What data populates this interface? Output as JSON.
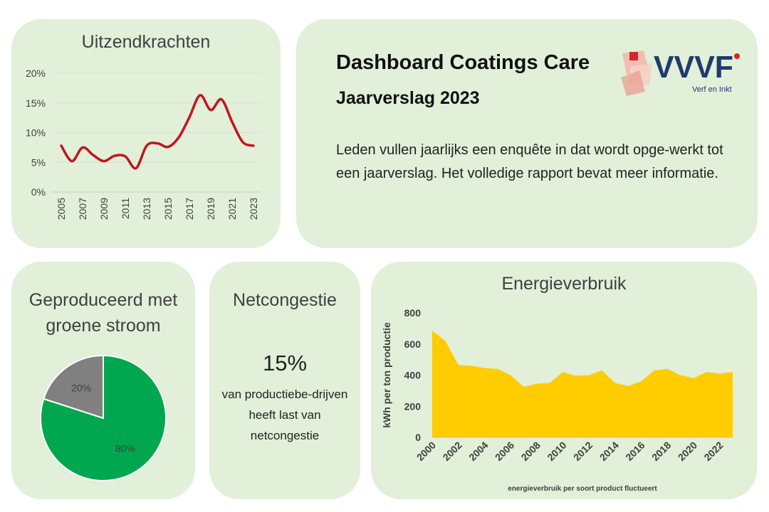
{
  "header": {
    "title": "Dashboard Coatings Care",
    "subtitle": "Jaarverslag 2023",
    "body": "Leden vullen jaarlijks een enquête in dat wordt opge-werkt tot een jaarverslag. Het volledige rapport bevat meer informatie.",
    "logo_text": "VVVF",
    "logo_subtext": "Verf en Inkt",
    "logo_colors": {
      "blue": "#1f3b6e",
      "red": "#d9232e",
      "pink": "#f2b5a9"
    }
  },
  "netcongestie": {
    "title": "Netcongestie",
    "value": "15%",
    "description": "van productiebe-drijven heeft last van netcongestie"
  },
  "chart_data": [
    {
      "type": "line",
      "title": "Uitzendkrachten",
      "x": [
        2005,
        2006,
        2007,
        2008,
        2009,
        2010,
        2011,
        2012,
        2013,
        2014,
        2015,
        2016,
        2017,
        2018,
        2019,
        2020,
        2021,
        2022,
        2023
      ],
      "x_tick_labels": [
        "2005",
        "2007",
        "2009",
        "2011",
        "2013",
        "2015",
        "2017",
        "2019",
        "2021",
        "2023"
      ],
      "series": [
        {
          "values": [
            7.8,
            5.2,
            7.5,
            6.2,
            5.2,
            6.1,
            6.0,
            4.0,
            7.8,
            8.2,
            7.6,
            9.2,
            12.6,
            16.3,
            13.8,
            15.6,
            11.8,
            8.4,
            7.8
          ],
          "color": "#c0161e"
        }
      ],
      "ylim": [
        0,
        20
      ],
      "y_tick_labels": [
        "0%",
        "5%",
        "10%",
        "15%",
        "20%"
      ],
      "grid": true
    },
    {
      "type": "pie",
      "title": "Geproduceerd met groene stroom",
      "slices": [
        {
          "label": "80%",
          "value": 80,
          "color": "#00a74f"
        },
        {
          "label": "20%",
          "value": 20,
          "color": "#808080"
        }
      ]
    },
    {
      "type": "area",
      "title": "Energieverbruik",
      "ylabel": "kWh per ton productie",
      "xlabel": "energieverbruik per soort product fluctueert",
      "x": [
        2000,
        2001,
        2002,
        2003,
        2004,
        2005,
        2006,
        2007,
        2008,
        2009,
        2010,
        2011,
        2012,
        2013,
        2014,
        2015,
        2016,
        2017,
        2018,
        2019,
        2020,
        2021,
        2022,
        2023
      ],
      "x_tick_labels": [
        "2000",
        "2002",
        "2004",
        "2006",
        "2008",
        "2010",
        "2012",
        "2014",
        "2016",
        "2018",
        "2020",
        "2022"
      ],
      "series": [
        {
          "values": [
            685,
            620,
            465,
            460,
            445,
            440,
            400,
            325,
            345,
            350,
            420,
            395,
            400,
            430,
            350,
            330,
            360,
            430,
            440,
            400,
            380,
            420,
            410,
            420
          ],
          "color": "#ffcc00"
        }
      ],
      "ylim": [
        0,
        800
      ],
      "y_tick_labels": [
        "0",
        "200",
        "400",
        "600",
        "800"
      ],
      "grid": false
    }
  ]
}
